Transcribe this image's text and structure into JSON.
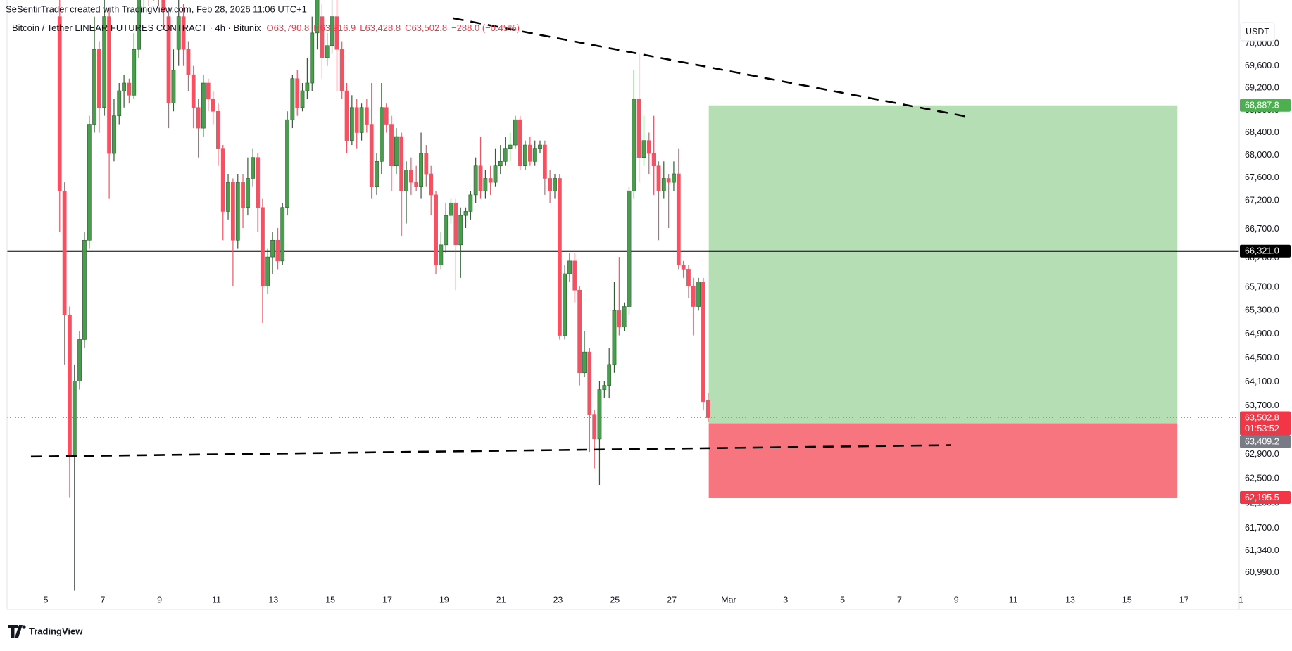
{
  "chart_data": {
    "type": "candlestick",
    "attribution": "SeSentirTrader created with TradingView.com, Feb 28, 2026 11:06 UTC+1",
    "title": "Bitcoin / Tether LINEAR FUTURES CONTRACT · 4h · Bitunix",
    "ohlc_legend": [
      "O63,790.8",
      "H63,916.9",
      "L63,428.8",
      "C63,502.8",
      "−288.0 (−0.45%)"
    ],
    "currency": "USDT",
    "brand": "TradingView",
    "up_color": "#4a9d4e",
    "down_color": "#f05464",
    "log_scale": true,
    "grid": false,
    "xlim": [
      3.64,
      46.94
    ],
    "ylim": [
      60674,
      70806
    ],
    "xticks": [
      5,
      7,
      9,
      11,
      13,
      15,
      17,
      19,
      21,
      23,
      25,
      27,
      {
        "value": 29,
        "label": "Mar"
      },
      {
        "value": 31,
        "label": "3"
      },
      {
        "value": 33,
        "label": "5"
      },
      {
        "value": 35,
        "label": "7"
      },
      {
        "value": 37,
        "label": "9"
      },
      {
        "value": 39,
        "label": "11"
      },
      {
        "value": 41,
        "label": "13"
      },
      {
        "value": 43,
        "label": "15"
      },
      {
        "value": 45,
        "label": "17"
      },
      {
        "value": 47,
        "label": "1"
      }
    ],
    "yticks": [
      {
        "value": 70000,
        "label": "70,000.0"
      },
      {
        "value": 69600,
        "label": "69,600.0"
      },
      {
        "value": 69200,
        "label": "69,200.0"
      },
      {
        "value": 68800,
        "label": "68,800.0"
      },
      {
        "value": 68400,
        "label": "68,400.0"
      },
      {
        "value": 68000,
        "label": "68,000.0"
      },
      {
        "value": 67600,
        "label": "67,600.0"
      },
      {
        "value": 67200,
        "label": "67,200.0"
      },
      {
        "value": 66700,
        "label": "66,700.0"
      },
      {
        "value": 66200,
        "label": "66,200.0"
      },
      {
        "value": 65700,
        "label": "65,700.0"
      },
      {
        "value": 65300,
        "label": "65,300.0"
      },
      {
        "value": 64900,
        "label": "64,900.0"
      },
      {
        "value": 64500,
        "label": "64,500.0"
      },
      {
        "value": 64100,
        "label": "64,100.0"
      },
      {
        "value": 63700,
        "label": "63,700.0"
      },
      {
        "value": 63300,
        "label": "63,300.0"
      },
      {
        "value": 62900,
        "label": "62,900.0"
      },
      {
        "value": 62500,
        "label": "62,500.0"
      },
      {
        "value": 62100,
        "label": "62,100.0"
      },
      {
        "value": 61700,
        "label": "61,700.0"
      },
      {
        "value": 61340,
        "label": "61,340.0"
      },
      {
        "value": 60990,
        "label": "60,990.0"
      }
    ],
    "x": [
      5.49,
      5.66,
      5.84,
      6.01,
      6.19,
      6.36,
      6.53,
      6.71,
      6.88,
      7.06,
      7.23,
      7.4,
      7.58,
      7.75,
      7.93,
      8.1,
      8.27,
      8.45,
      8.62,
      8.8,
      8.97,
      9.14,
      9.32,
      9.49,
      9.67,
      9.84,
      10.01,
      10.19,
      10.36,
      10.54,
      10.71,
      10.88,
      11.06,
      11.23,
      11.41,
      11.58,
      11.75,
      11.93,
      12.1,
      12.28,
      12.45,
      12.62,
      12.8,
      12.97,
      13.15,
      13.32,
      13.49,
      13.67,
      13.84,
      14.02,
      14.19,
      14.36,
      14.54,
      14.71,
      14.89,
      15.06,
      15.23,
      15.41,
      15.58,
      15.76,
      15.93,
      16.1,
      16.28,
      16.45,
      16.63,
      16.8,
      16.97,
      17.15,
      17.32,
      17.5,
      17.67,
      17.84,
      18.02,
      18.19,
      18.37,
      18.54,
      18.71,
      18.89,
      19.06,
      19.24,
      19.41,
      19.58,
      19.76,
      19.93,
      20.11,
      20.28,
      20.45,
      20.63,
      20.8,
      20.98,
      21.15,
      21.32,
      21.5,
      21.67,
      21.85,
      22.02,
      22.19,
      22.37,
      22.54,
      22.72,
      22.89,
      23.06,
      23.24,
      23.41,
      23.59,
      23.76,
      23.93,
      24.11,
      24.28,
      24.46,
      24.63,
      24.8,
      24.98,
      25.15,
      25.33,
      25.5,
      25.67,
      25.85,
      26.02,
      26.2,
      26.37,
      26.54,
      26.72,
      26.89,
      27.07,
      27.24,
      27.41,
      27.59,
      27.76,
      27.94,
      28.11,
      28.28
    ],
    "open": [
      70500,
      67370,
      65230,
      62880,
      64110,
      64810,
      66510,
      68550,
      69900,
      68850,
      70500,
      68030,
      68700,
      69150,
      69290,
      69070,
      69900,
      70850,
      71200,
      70950,
      71300,
      70900,
      70500,
      68930,
      69900,
      70500,
      69900,
      69440,
      68850,
      68480,
      69290,
      69000,
      68780,
      68110,
      67010,
      67520,
      66510,
      67520,
      67080,
      67590,
      67960,
      67080,
      65720,
      66220,
      66510,
      66150,
      67080,
      68630,
      69370,
      68850,
      69150,
      69290,
      70200,
      70500,
      69750,
      69970,
      70500,
      69900,
      69150,
      68260,
      68850,
      68400,
      68850,
      68550,
      67450,
      67890,
      68850,
      68550,
      67810,
      68330,
      67370,
      67740,
      67520,
      67450,
      68030,
      67670,
      67300,
      66080,
      66430,
      66940,
      67160,
      66430,
      66940,
      67010,
      67300,
      67810,
      67370,
      67590,
      67520,
      67810,
      67890,
      68110,
      68180,
      68630,
      67810,
      68180,
      67890,
      68110,
      68180,
      67590,
      67370,
      67590,
      64880,
      65930,
      66150,
      65650,
      64250,
      64600,
      63560,
      63150,
      63970,
      64040,
      64390,
      65300,
      65020,
      65370,
      67370,
      69000,
      67960,
      68260,
      68030,
      67810,
      67370,
      67590,
      67520,
      67670,
      66080,
      66010,
      65720,
      65370,
      65790,
      63790.8
    ],
    "high": [
      70900,
      67520,
      65370,
      64390,
      64950,
      66650,
      68700,
      70500,
      70050,
      70900,
      70650,
      69000,
      69290,
      69440,
      69370,
      70200,
      71100,
      71400,
      71500,
      71500,
      71400,
      71000,
      70650,
      69900,
      70850,
      70730,
      70050,
      69600,
      69000,
      69440,
      69370,
      69150,
      68920,
      68180,
      67670,
      67590,
      67670,
      67670,
      67960,
      68110,
      68030,
      67230,
      66360,
      66650,
      66720,
      67160,
      68780,
      69440,
      69520,
      69290,
      69750,
      70500,
      71100,
      70730,
      70200,
      70850,
      70850,
      70050,
      69290,
      69070,
      69000,
      68920,
      69000,
      69290,
      68030,
      69290,
      68920,
      68700,
      68480,
      68400,
      67890,
      67960,
      67810,
      68400,
      68180,
      67810,
      67370,
      66650,
      67160,
      67230,
      67230,
      67080,
      67080,
      67370,
      67960,
      68330,
      67740,
      67810,
      68110,
      68180,
      68330,
      68400,
      68700,
      68700,
      68260,
      68330,
      68260,
      68260,
      68260,
      67740,
      67670,
      67670,
      66080,
      66290,
      66290,
      65720,
      64950,
      64670,
      63630,
      64110,
      64110,
      64670,
      65790,
      66220,
      65440,
      67450,
      69520,
      69820,
      68700,
      68400,
      68700,
      67890,
      67890,
      67670,
      67890,
      68110,
      66150,
      66080,
      65860,
      65860,
      65860,
      63916.9
    ],
    "low": [
      66650,
      64390,
      62200,
      60700,
      63970,
      64670,
      66360,
      68400,
      68400,
      68700,
      67230,
      67890,
      68550,
      68850,
      68920,
      69000,
      69740,
      70600,
      70700,
      70800,
      70700,
      70300,
      68480,
      68780,
      69600,
      69600,
      69150,
      68480,
      67960,
      68330,
      68780,
      68550,
      67810,
      66510,
      66870,
      65720,
      66360,
      66720,
      66940,
      67450,
      66650,
      65090,
      65580,
      65930,
      66010,
      66080,
      66940,
      68480,
      68700,
      68780,
      69000,
      69150,
      69900,
      69370,
      69600,
      69820,
      69150,
      69000,
      68030,
      68180,
      68110,
      68260,
      68400,
      67230,
      67300,
      67670,
      68400,
      67370,
      67670,
      66580,
      66800,
      67300,
      67370,
      67230,
      67450,
      66940,
      65930,
      66010,
      66290,
      66800,
      65650,
      65860,
      66720,
      66870,
      67160,
      67230,
      67230,
      67300,
      67450,
      67670,
      67810,
      67890,
      68110,
      67740,
      67740,
      67810,
      67810,
      68030,
      67300,
      67160,
      67230,
      64810,
      64810,
      65790,
      65440,
      64040,
      64180,
      62940,
      62670,
      62400,
      63830,
      63830,
      64250,
      64880,
      64950,
      65230,
      67230,
      67520,
      67810,
      67670,
      67300,
      66510,
      67230,
      66720,
      67370,
      66010,
      65860,
      65510,
      64880,
      65300,
      63630,
      63428.8
    ],
    "close": [
      67370,
      65230,
      62880,
      64110,
      64810,
      66510,
      68550,
      69900,
      68850,
      70500,
      68030,
      68700,
      69150,
      69290,
      69070,
      69900,
      70850,
      71200,
      70950,
      71300,
      70900,
      70600,
      68930,
      69520,
      70500,
      69900,
      69440,
      68850,
      68480,
      69290,
      69000,
      68780,
      68110,
      67010,
      67520,
      66510,
      67520,
      67080,
      67590,
      67960,
      67080,
      65720,
      66220,
      66510,
      66150,
      67080,
      68630,
      69370,
      68850,
      69150,
      69290,
      70200,
      70850,
      69750,
      69970,
      70500,
      69900,
      69150,
      68260,
      68850,
      68400,
      68850,
      68550,
      67450,
      67890,
      68850,
      68550,
      67810,
      68330,
      67370,
      67740,
      67520,
      67450,
      68030,
      67670,
      67300,
      66080,
      66430,
      66940,
      67160,
      66430,
      66940,
      67010,
      67300,
      67810,
      67370,
      67590,
      67520,
      67810,
      67890,
      68110,
      68180,
      68630,
      67810,
      68180,
      67890,
      68110,
      68180,
      67590,
      67370,
      67590,
      64880,
      65930,
      66150,
      65650,
      64250,
      64600,
      63560,
      63150,
      63970,
      64040,
      64390,
      65300,
      65020,
      65370,
      67370,
      69000,
      67960,
      68260,
      68030,
      67810,
      67370,
      67590,
      67520,
      67670,
      66080,
      66010,
      65720,
      65370,
      65790,
      63770,
      63502.8
    ],
    "hline": {
      "value": 66321.0,
      "label": "66,321.0",
      "color": "#000000"
    },
    "last_price": {
      "value": 63502.8,
      "label": "63,502.8",
      "countdown": "01:53:52",
      "color": "#f23645"
    },
    "position": {
      "x": [
        28.3,
        44.77
      ],
      "target": 68887.8,
      "target_label": "68,887.8",
      "entry": 63409.2,
      "entry_label": "63,409.2",
      "stop": 62195.5,
      "stop_label": "62,195.5",
      "profit_color": "#b5deb4",
      "loss_color": "#f6757f",
      "target_label_color": "#4caf50",
      "entry_label_color": "#787b86",
      "stop_label_color": "#f23645"
    },
    "trendlines": [
      {
        "x": [
          19.32,
          37.43
        ],
        "y": [
          70470,
          68680
        ]
      },
      {
        "x": [
          4.48,
          36.8
        ],
        "y": [
          62862,
          63050
        ]
      }
    ]
  }
}
